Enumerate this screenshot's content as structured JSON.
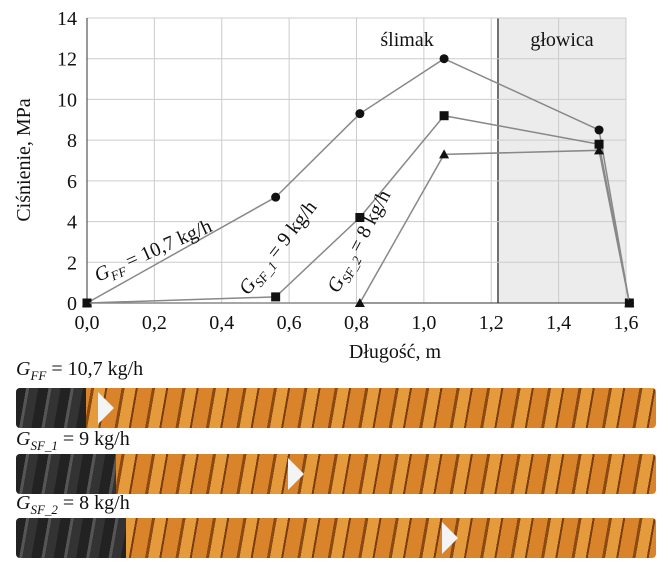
{
  "chart_data": {
    "type": "line",
    "xlabel": "Długość, m",
    "ylabel": "Ciśnienie, MPa",
    "xlim": [
      0,
      1.6
    ],
    "ylim": [
      0,
      14
    ],
    "xticks": [
      {
        "value": 0,
        "label": "0,0"
      },
      {
        "value": 0.2,
        "label": "0,2"
      },
      {
        "value": 0.4,
        "label": "0,4"
      },
      {
        "value": 0.6,
        "label": "0,6"
      },
      {
        "value": 0.8,
        "label": "0,8"
      },
      {
        "value": 1.0,
        "label": "1,0"
      },
      {
        "value": 1.2,
        "label": "1,2"
      },
      {
        "value": 1.4,
        "label": "1,4"
      },
      {
        "value": 1.6,
        "label": "1,6"
      }
    ],
    "yticks": [
      0,
      2,
      4,
      6,
      8,
      10,
      12,
      14
    ],
    "grid": true,
    "regions": [
      {
        "label": "ślimak",
        "xlim": [
          0.68,
          1.22
        ],
        "shaded": false
      },
      {
        "label": "głowica",
        "xlim": [
          1.22,
          1.6
        ],
        "shaded": true
      }
    ],
    "series": [
      {
        "symbol": "G",
        "subscript": "FF",
        "name": "= 10,7 kg/h",
        "color": "#111111",
        "marker": "circle",
        "x": [
          0,
          0.56,
          0.81,
          1.06,
          1.52,
          1.61
        ],
        "values": [
          0,
          5.2,
          9.3,
          12,
          8.5,
          0
        ]
      },
      {
        "symbol": "G",
        "subscript": "SF_1",
        "name": "= 9 kg/h",
        "color": "#111111",
        "marker": "square",
        "x": [
          0,
          0.56,
          0.81,
          1.06,
          1.52,
          1.61
        ],
        "values": [
          0,
          0.3,
          4.2,
          9.2,
          7.8,
          0
        ]
      },
      {
        "symbol": "G",
        "subscript": "SF_2",
        "name": "= 8 kg/h",
        "color": "#111111",
        "marker": "triangle",
        "x": [
          0,
          0.81,
          1.06,
          1.52,
          1.61
        ],
        "values": [
          0,
          0,
          7.3,
          7.5,
          0
        ]
      }
    ]
  },
  "photos": [
    {
      "symbol": "G",
      "subscript": "FF",
      "text": "= 10,7 kg/h"
    },
    {
      "symbol": "G",
      "subscript": "SF_1",
      "text": "= 9 kg/h"
    },
    {
      "symbol": "G",
      "subscript": "SF_2",
      "text": "= 8 kg/h"
    }
  ]
}
